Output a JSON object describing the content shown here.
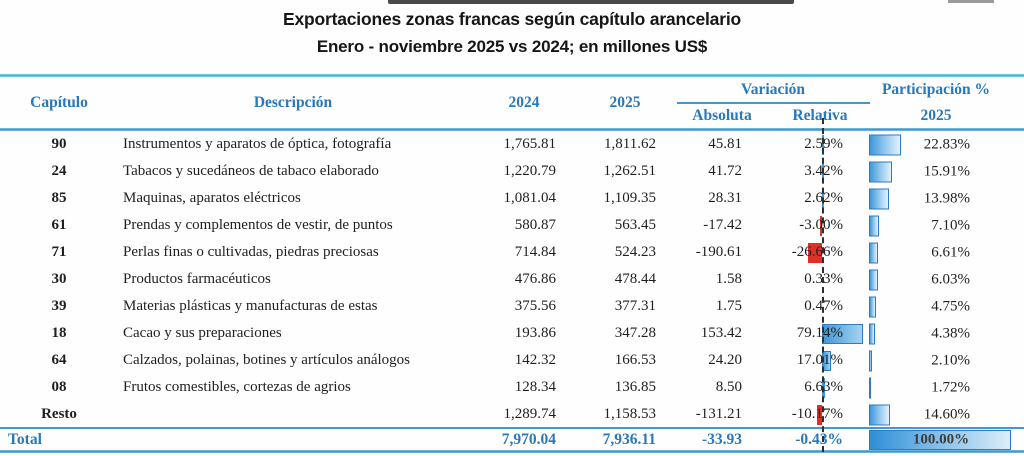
{
  "chart_data": {
    "type": "table",
    "title": "Exportaciones zonas francas según capítulo arancelario",
    "subtitle": "Enero - noviembre 2025 vs 2024; en millones US$",
    "columns": [
      "Capítulo",
      "Descripción",
      "2024",
      "2025",
      "Variación Absoluta",
      "Variación Relativa",
      "Participación % 2025"
    ],
    "rows": [
      {
        "capitulo": "90",
        "descripcion": "Instrumentos y aparatos de óptica, fotografía",
        "y2024": "1,765.81",
        "y2025": "1,811.62",
        "absoluta": "45.81",
        "relativa": "2.59%",
        "relativa_pct": 2.59,
        "participacion": "22.83%",
        "participacion_pct": 22.83
      },
      {
        "capitulo": "24",
        "descripcion": "Tabacos y sucedáneos de tabaco elaborado",
        "y2024": "1,220.79",
        "y2025": "1,262.51",
        "absoluta": "41.72",
        "relativa": "3.42%",
        "relativa_pct": 3.42,
        "participacion": "15.91%",
        "participacion_pct": 15.91
      },
      {
        "capitulo": "85",
        "descripcion": "Maquinas, aparatos eléctricos",
        "y2024": "1,081.04",
        "y2025": "1,109.35",
        "absoluta": "28.31",
        "relativa": "2.62%",
        "relativa_pct": 2.62,
        "participacion": "13.98%",
        "participacion_pct": 13.98
      },
      {
        "capitulo": "61",
        "descripcion": "Prendas y complementos de vestir, de puntos",
        "y2024": "580.87",
        "y2025": "563.45",
        "absoluta": "-17.42",
        "relativa": "-3.00%",
        "relativa_pct": -3.0,
        "participacion": "7.10%",
        "participacion_pct": 7.1
      },
      {
        "capitulo": "71",
        "descripcion": "Perlas finas o cultivadas, piedras preciosas",
        "y2024": "714.84",
        "y2025": "524.23",
        "absoluta": "-190.61",
        "relativa": "-26.66%",
        "relativa_pct": -26.66,
        "participacion": "6.61%",
        "participacion_pct": 6.61
      },
      {
        "capitulo": "30",
        "descripcion": "Productos farmacéuticos",
        "y2024": "476.86",
        "y2025": "478.44",
        "absoluta": "1.58",
        "relativa": "0.33%",
        "relativa_pct": 0.33,
        "participacion": "6.03%",
        "participacion_pct": 6.03
      },
      {
        "capitulo": "39",
        "descripcion": "Materias plásticas y manufacturas de estas",
        "y2024": "375.56",
        "y2025": "377.31",
        "absoluta": "1.75",
        "relativa": "0.47%",
        "relativa_pct": 0.47,
        "participacion": "4.75%",
        "participacion_pct": 4.75
      },
      {
        "capitulo": "18",
        "descripcion": "Cacao y sus preparaciones",
        "y2024": "193.86",
        "y2025": "347.28",
        "absoluta": "153.42",
        "relativa": "79.14%",
        "relativa_pct": 79.14,
        "participacion": "4.38%",
        "participacion_pct": 4.38
      },
      {
        "capitulo": "64",
        "descripcion": "Calzados, polainas, botines y artículos análogos",
        "y2024": "142.32",
        "y2025": "166.53",
        "absoluta": "24.20",
        "relativa": "17.01%",
        "relativa_pct": 17.01,
        "participacion": "2.10%",
        "participacion_pct": 2.1
      },
      {
        "capitulo": "08",
        "descripcion": "Frutos comestibles, cortezas de agrios",
        "y2024": "128.34",
        "y2025": "136.85",
        "absoluta": "8.50",
        "relativa": "6.63%",
        "relativa_pct": 6.63,
        "participacion": "1.72%",
        "participacion_pct": 1.72
      },
      {
        "capitulo": "Resto",
        "descripcion": "",
        "y2024": "1,289.74",
        "y2025": "1,158.53",
        "absoluta": "-131.21",
        "relativa": "-10.17%",
        "relativa_pct": -10.17,
        "participacion": "14.60%",
        "participacion_pct": 14.6
      }
    ],
    "total": {
      "capitulo": "Total",
      "descripcion": "",
      "y2024": "7,970.04",
      "y2025": "7,936.11",
      "absoluta": "-33.93",
      "relativa": "-0.43%",
      "relativa_pct": -0.43,
      "participacion": "100.00%",
      "participacion_pct": 100.0
    }
  },
  "headers": {
    "capitulo": "Capítulo",
    "descripcion": "Descripción",
    "y2024": "2024",
    "y2025": "2025",
    "variacion": "Variación",
    "absoluta": "Absoluta",
    "relativa": "Relativa",
    "participacion": "Participación %",
    "participacion_year": "2025"
  },
  "colors": {
    "header_blue": "#2878bc",
    "rule_teal": "#3ab4c6",
    "rule_blue": "#3f9ad2",
    "bar_blue": "#3e98da",
    "bar_blue_light": "#e3f1fb",
    "bar_border": "#2b7cc0",
    "bar_red": "#df2f28",
    "axis_dash": "#2e2e2e",
    "body_text": "#1f1f1f"
  }
}
